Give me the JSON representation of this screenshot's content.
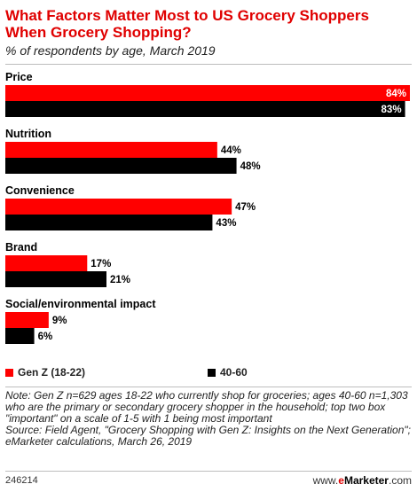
{
  "header": {
    "title": "What Factors Matter Most to US Grocery Shoppers When Grocery Shopping?",
    "subtitle": "% of respondents by age, March 2019"
  },
  "colors": {
    "genz": "#ff0000",
    "age40_60": "#000000"
  },
  "chart_data": {
    "type": "bar",
    "orientation": "horizontal",
    "categories": [
      "Price",
      "Nutrition",
      "Convenience",
      "Brand",
      "Social/environmental impact"
    ],
    "series": [
      {
        "name": "Gen Z (18-22)",
        "values": [
          84,
          44,
          47,
          17,
          9
        ]
      },
      {
        "name": "40-60",
        "values": [
          83,
          48,
          43,
          21,
          6
        ]
      }
    ],
    "value_labels": {
      "genz": [
        "84%",
        "44%",
        "47%",
        "17%",
        "9%"
      ],
      "age40_60": [
        "83%",
        "48%",
        "43%",
        "21%",
        "6%"
      ]
    },
    "xlim": [
      0,
      84
    ],
    "grid": false,
    "legend": "bottom"
  },
  "legend": {
    "genz_label": "Gen Z (18-22)",
    "age40_60_label": "40-60"
  },
  "footer": {
    "note": "Note: Gen Z n=629 ages 18-22 who currently shop for groceries; ages 40-60 n=1,303 who are the primary or secondary grocery shopper in the household; top two box \"important\" on a scale of 1-5 with 1 being most important",
    "source": "Source: Field Agent, \"Grocery Shopping with Gen Z: Insights on the Next Generation\"; eMarketer calculations, March 26, 2019",
    "id": "246214",
    "brand_prefix": "www.",
    "brand_e": "e",
    "brand_name": "Marketer",
    "brand_suffix": ".com"
  }
}
